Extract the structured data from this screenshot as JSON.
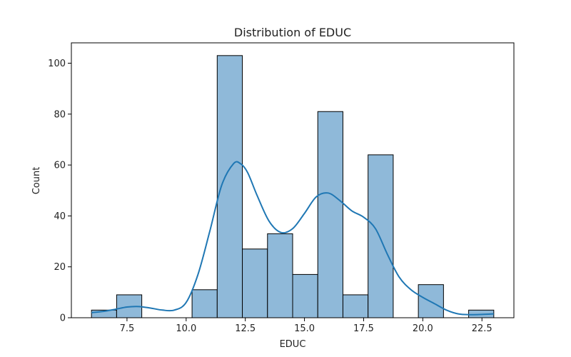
{
  "colors": {
    "bar_fill": "#8fb9d9",
    "bar_edge": "#000000",
    "kde_line": "#1f77b4",
    "axis": "#000000",
    "background": "#ffffff"
  },
  "chart_data": {
    "type": "bar",
    "title": "Distribution of EDUC",
    "xlabel": "EDUC",
    "ylabel": "Count",
    "xlim": [
      5.15,
      23.85
    ],
    "ylim": [
      0,
      108
    ],
    "x_ticks": [
      7.5,
      10.0,
      12.5,
      15.0,
      17.5,
      20.0,
      22.5
    ],
    "x_tick_labels": [
      "7.5",
      "10.0",
      "12.5",
      "15.0",
      "17.5",
      "20.0",
      "22.5"
    ],
    "y_ticks": [
      0,
      20,
      40,
      60,
      80,
      100
    ],
    "y_tick_labels": [
      "0",
      "20",
      "40",
      "60",
      "80",
      "100"
    ],
    "grid": false,
    "bin_edges": [
      6.0,
      7.0625,
      8.125,
      9.1875,
      10.25,
      11.3125,
      12.375,
      13.4375,
      14.5,
      15.5625,
      16.625,
      17.6875,
      18.75,
      19.8125,
      20.875,
      21.9375,
      23.0
    ],
    "counts": [
      3,
      9,
      0,
      0,
      11,
      103,
      27,
      33,
      17,
      81,
      9,
      64,
      0,
      13,
      0,
      3
    ],
    "kde_overlay": {
      "x": [
        6.0,
        6.5,
        7.0,
        7.5,
        8.0,
        8.5,
        9.0,
        9.5,
        10.0,
        10.5,
        11.0,
        11.5,
        12.0,
        12.3,
        12.6,
        13.0,
        13.5,
        14.0,
        14.5,
        15.0,
        15.5,
        16.0,
        16.5,
        17.0,
        17.5,
        18.0,
        18.5,
        19.0,
        19.5,
        20.0,
        20.5,
        21.0,
        21.5,
        22.0,
        22.5,
        23.0
      ],
      "y": [
        2,
        2.5,
        3.3,
        4.2,
        4.4,
        3.8,
        3,
        3,
        6,
        17,
        34,
        52,
        60.5,
        60.5,
        57,
        48,
        38,
        33.5,
        35,
        41,
        47.5,
        49,
        46,
        42,
        39.5,
        35,
        25,
        16,
        11,
        8,
        5.5,
        3,
        1.5,
        1.2,
        1.3,
        1.5
      ]
    }
  }
}
